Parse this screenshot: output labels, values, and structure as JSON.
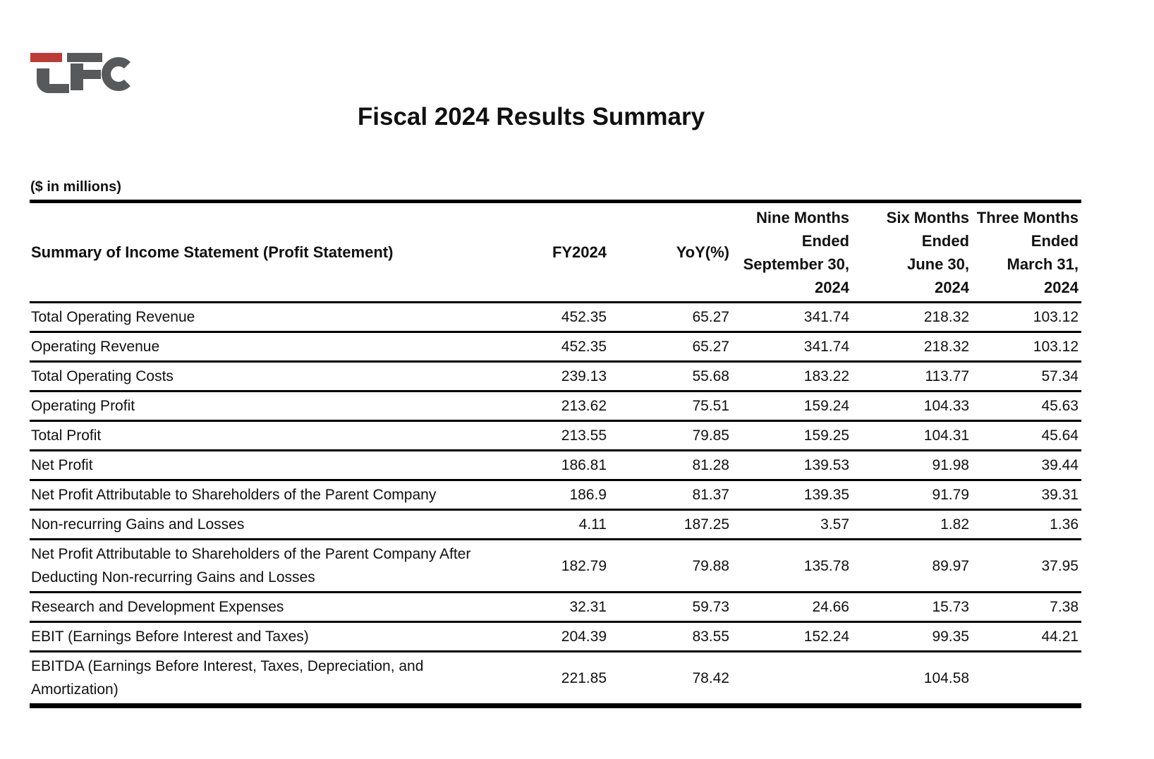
{
  "page": {
    "title": "Fiscal 2024 Results Summary",
    "units_note": "($ in millions)"
  },
  "logo": {
    "name": "LFC",
    "accent_red": "#BE3A34",
    "gray": "#58595B"
  },
  "table": {
    "label_header": "Summary of Income Statement (Profit Statement)",
    "columns": [
      {
        "label": "FY2024",
        "lines": [
          "FY2024"
        ]
      },
      {
        "label": "YoY(%)",
        "lines": [
          "YoY(%)"
        ]
      },
      {
        "label": "Nine Months Ended September 30, 2024",
        "lines": [
          "Nine Months",
          "Ended",
          "September 30,",
          "2024"
        ]
      },
      {
        "label": "Six Months Ended June 30, 2024",
        "lines": [
          "Six Months",
          "Ended",
          "June 30,",
          "2024"
        ]
      },
      {
        "label": "Three Months Ended March 31, 2024",
        "lines": [
          "Three Months",
          "Ended",
          "March 31,",
          "2024"
        ]
      }
    ],
    "rows": [
      {
        "label": "Total Operating Revenue",
        "values": [
          "452.35",
          "65.27",
          "341.74",
          "218.32",
          "103.12"
        ]
      },
      {
        "label": "Operating Revenue",
        "values": [
          "452.35",
          "65.27",
          "341.74",
          "218.32",
          "103.12"
        ]
      },
      {
        "label": "Total Operating Costs",
        "values": [
          "239.13",
          "55.68",
          "183.22",
          "113.77",
          "57.34"
        ]
      },
      {
        "label": "Operating Profit",
        "values": [
          "213.62",
          "75.51",
          "159.24",
          "104.33",
          "45.63"
        ]
      },
      {
        "label": "Total Profit",
        "values": [
          "213.55",
          "79.85",
          "159.25",
          "104.31",
          "45.64"
        ]
      },
      {
        "label": "Net Profit",
        "values": [
          "186.81",
          "81.28",
          "139.53",
          "91.98",
          "39.44"
        ]
      },
      {
        "label": "Net Profit Attributable to Shareholders of the Parent Company",
        "values": [
          "186.9",
          "81.37",
          "139.35",
          "91.79",
          "39.31"
        ]
      },
      {
        "label": "Non-recurring Gains and Losses",
        "values": [
          "4.11",
          "187.25",
          "3.57",
          "1.82",
          "1.36"
        ]
      },
      {
        "label": "Net Profit Attributable to Shareholders of the Parent Company After Deducting Non-recurring Gains and Losses",
        "values": [
          "182.79",
          "79.88",
          "135.78",
          "89.97",
          "37.95"
        ]
      },
      {
        "label": "Research and Development Expenses",
        "values": [
          "32.31",
          "59.73",
          "24.66",
          "15.73",
          "7.38"
        ]
      },
      {
        "label": "EBIT (Earnings Before Interest and Taxes)",
        "values": [
          "204.39",
          "83.55",
          "152.24",
          "99.35",
          "44.21"
        ]
      },
      {
        "label": "EBITDA (Earnings Before Interest, Taxes, Depreciation, and Amortization)",
        "values": [
          "221.85",
          "78.42",
          "",
          "104.58",
          ""
        ]
      }
    ]
  }
}
